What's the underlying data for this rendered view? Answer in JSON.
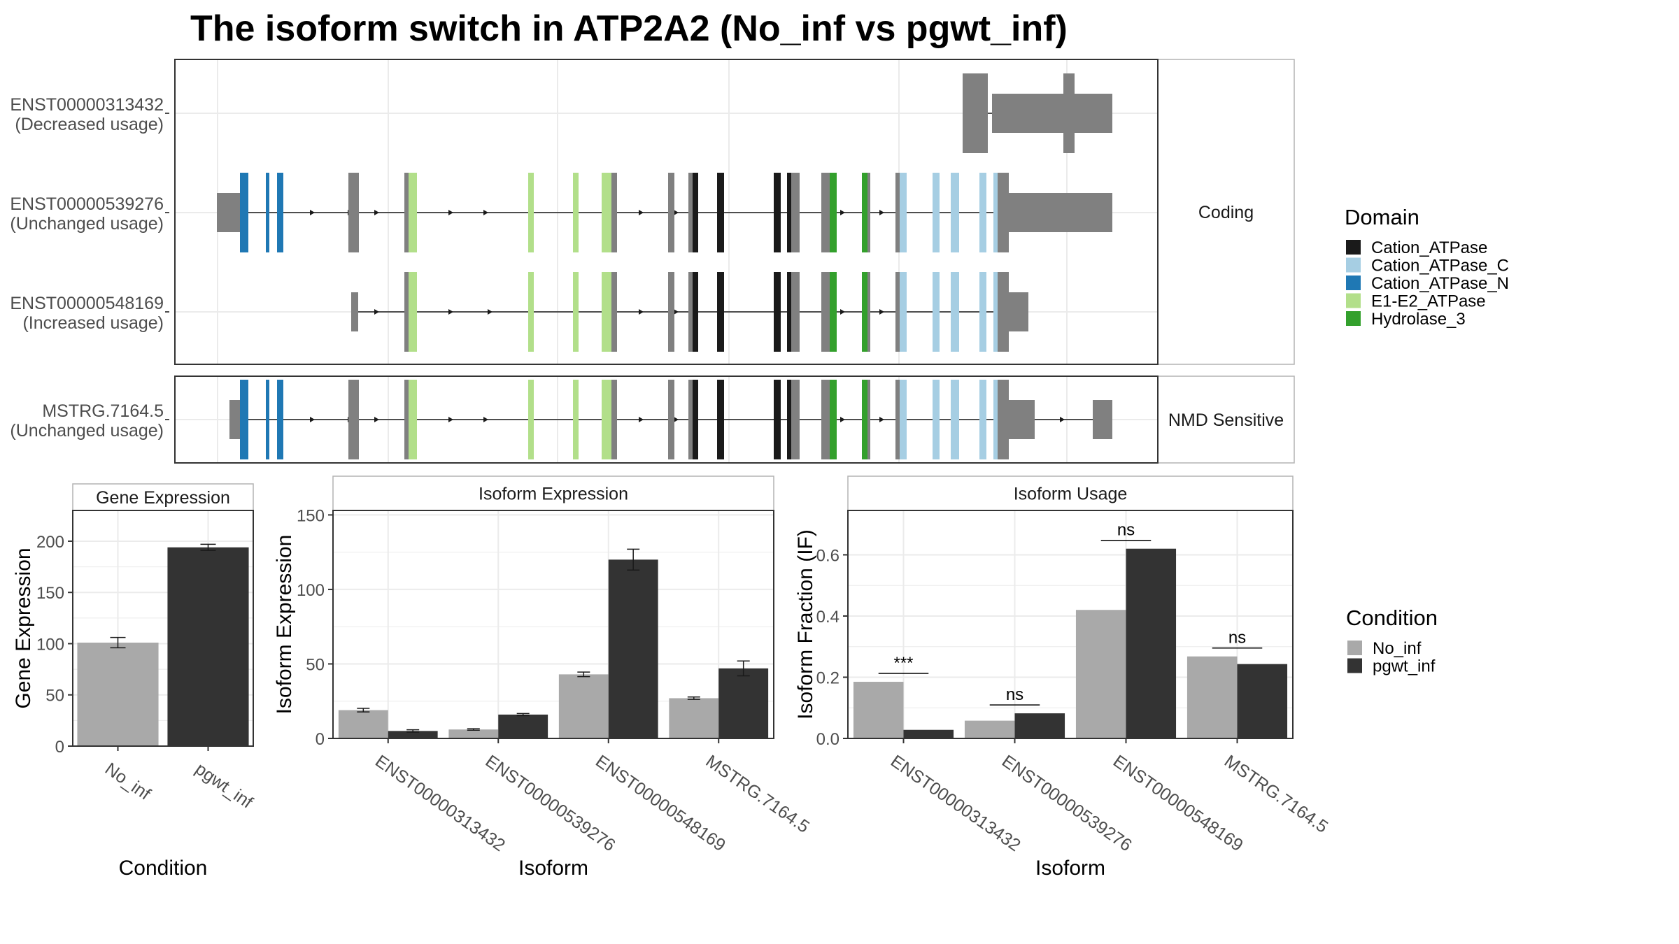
{
  "title": "The isoform switch in ATP2A2 (No_inf vs pgwt_inf)",
  "colors": {
    "background": "#ffffff",
    "panel_border": "#333333",
    "strip_fill": "#ffffff",
    "strip_border": "#b3b3b3",
    "gridline": "#ebebeb",
    "exon": "#808080",
    "intron": "#1a1a1a",
    "error_bar": "#1a1a1a",
    "axis_text": "#4d4d4d"
  },
  "domain_legend": {
    "title": "Domain",
    "items": [
      {
        "name": "Cation_ATPase",
        "color": "#1a1a1a"
      },
      {
        "name": "Cation_ATPase_C",
        "color": "#a6cee3"
      },
      {
        "name": "Cation_ATPase_N",
        "color": "#1f78b4"
      },
      {
        "name": "E1-E2_ATPase",
        "color": "#b2df8a"
      },
      {
        "name": "Hydrolase_3",
        "color": "#33a02c"
      }
    ]
  },
  "condition_legend": {
    "title": "Condition",
    "items": [
      {
        "name": "No_inf",
        "color": "#a9a9a9"
      },
      {
        "name": "pgwt_inf",
        "color": "#333333"
      }
    ]
  },
  "transcript_panels": [
    {
      "strip": "Coding",
      "transcripts": [
        {
          "id": "ENST00000313432",
          "usage": "(Decreased usage)"
        },
        {
          "id": "ENST00000539276",
          "usage": "(Unchanged usage)"
        },
        {
          "id": "ENST00000548169",
          "usage": "(Increased usage)"
        }
      ]
    },
    {
      "strip": "NMD Sensitive",
      "transcripts": [
        {
          "id": "MSTRG.7164.5",
          "usage": "(Unchanged usage)"
        }
      ]
    }
  ],
  "chart_data": [
    {
      "type": "bar",
      "panel_title": "Gene Expression",
      "xlabel": "Condition",
      "ylabel": "Gene Expression",
      "categories": [
        "No_inf",
        "pgwt_inf"
      ],
      "values": [
        101,
        194
      ],
      "errors": [
        5,
        3
      ],
      "colors": [
        "#a9a9a9",
        "#333333"
      ],
      "ylim": [
        0,
        230
      ],
      "yticks": [
        0,
        50,
        100,
        150,
        200
      ],
      "grid": true
    },
    {
      "type": "bar",
      "panel_title": "Isoform Expression",
      "xlabel": "Isoform",
      "ylabel": "Isoform Expression",
      "categories": [
        "ENST00000313432",
        "ENST00000539276",
        "ENST00000548169",
        "MSTRG.7164.5"
      ],
      "series": [
        {
          "name": "No_inf",
          "values": [
            19,
            6,
            43,
            27
          ],
          "errors": [
            1.2,
            0.5,
            1.5,
            0.8
          ]
        },
        {
          "name": "pgwt_inf",
          "values": [
            5,
            16,
            120,
            47
          ],
          "errors": [
            0.8,
            0.7,
            7,
            5
          ]
        }
      ],
      "ylim": [
        0,
        153
      ],
      "yticks": [
        0,
        50,
        100,
        150
      ],
      "grid": true
    },
    {
      "type": "bar",
      "panel_title": "Isoform Usage",
      "xlabel": "Isoform",
      "ylabel": "Isoform Fraction (IF)",
      "categories": [
        "ENST00000313432",
        "ENST00000539276",
        "ENST00000548169",
        "MSTRG.7164.5"
      ],
      "series": [
        {
          "name": "No_inf",
          "values": [
            0.185,
            0.058,
            0.42,
            0.268
          ]
        },
        {
          "name": "pgwt_inf",
          "values": [
            0.028,
            0.082,
            0.62,
            0.243
          ]
        }
      ],
      "significance": [
        "***",
        "ns",
        "ns",
        "ns"
      ],
      "ylim": [
        0,
        0.745
      ],
      "yticks": [
        "0.0",
        "0.2",
        "0.4",
        "0.6"
      ],
      "grid": true
    }
  ]
}
